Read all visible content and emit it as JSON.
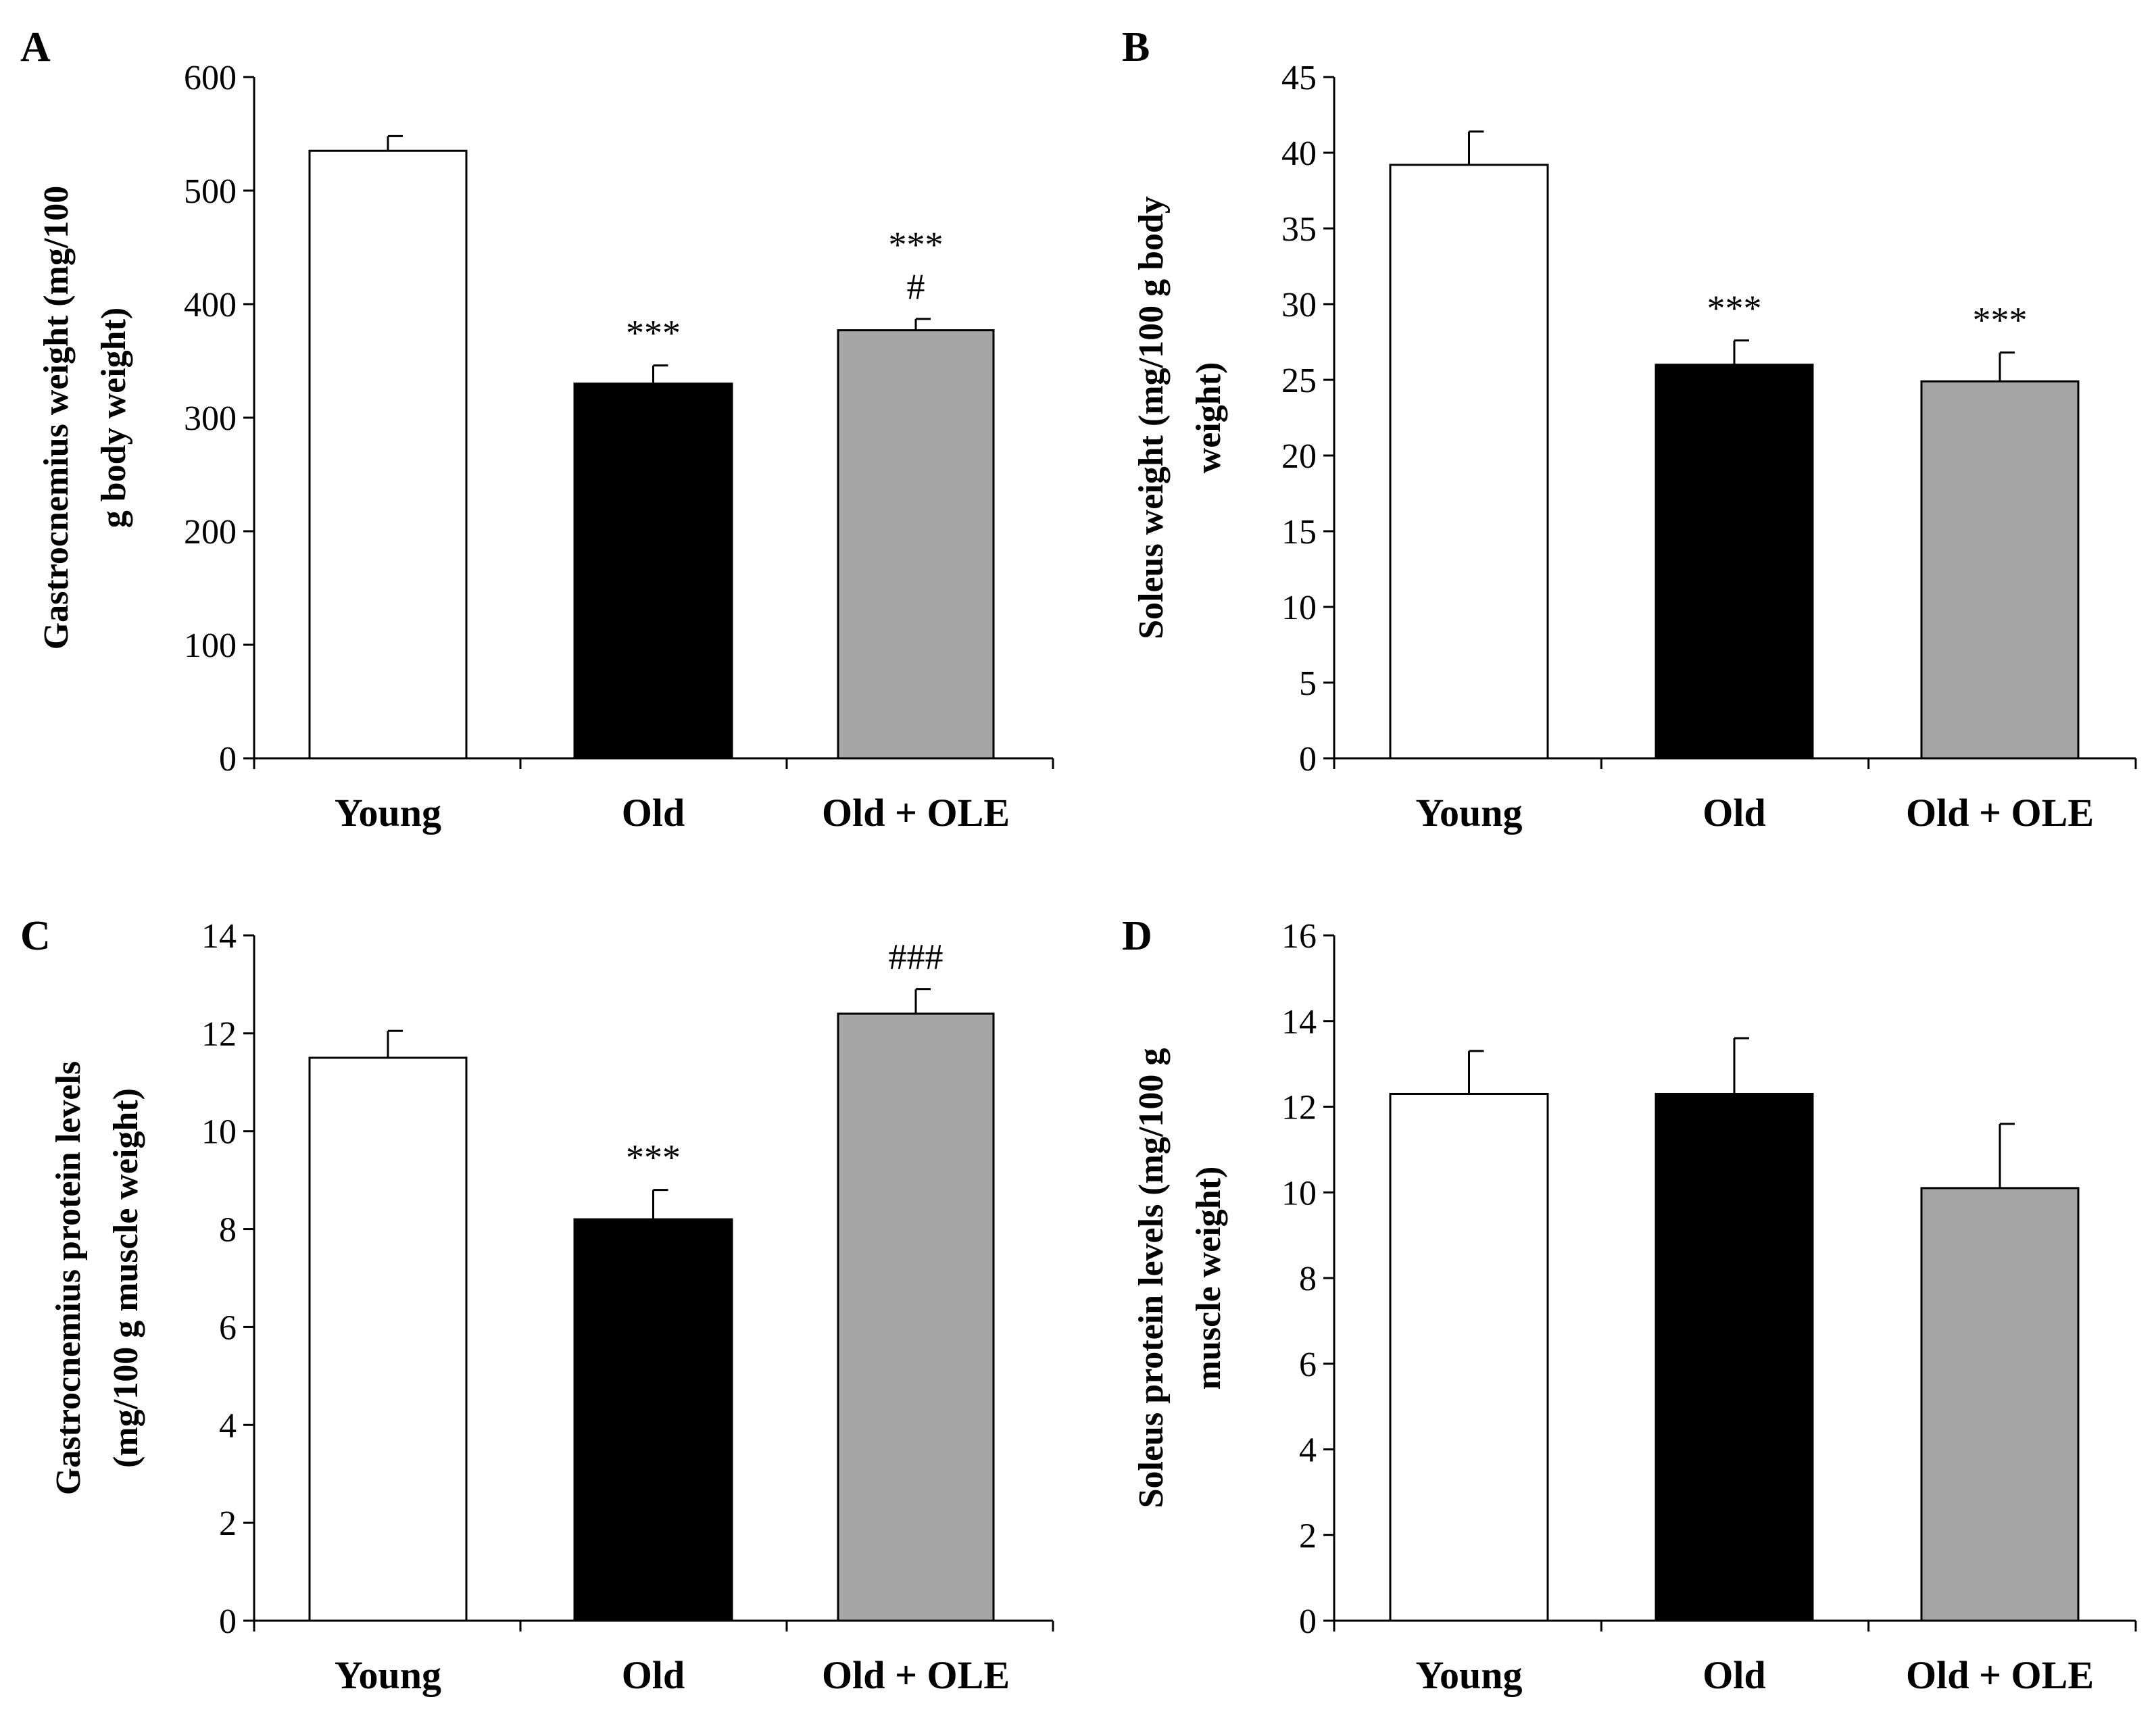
{
  "chart_data": [
    {
      "type": "bar",
      "panel": "A",
      "categories": [
        "Young",
        "Old",
        "Old + OLE"
      ],
      "values": [
        535,
        330,
        377
      ],
      "errors": [
        13,
        16,
        10
      ],
      "colors": [
        "#ffffff",
        "#000000",
        "#a6a6a6"
      ],
      "annotations": [
        [],
        [
          "***"
        ],
        [
          "***",
          "#"
        ]
      ],
      "ylabel_lines": [
        "Gastrocnemius weight (mg/100",
        "g body weight)"
      ],
      "ylim": [
        0,
        600
      ],
      "yticks": [
        0,
        100,
        200,
        300,
        400,
        500,
        600
      ]
    },
    {
      "type": "bar",
      "panel": "B",
      "categories": [
        "Young",
        "Old",
        "Old + OLE"
      ],
      "values": [
        39.2,
        26.0,
        24.9
      ],
      "errors": [
        2.2,
        1.6,
        1.9
      ],
      "colors": [
        "#ffffff",
        "#000000",
        "#a6a6a6"
      ],
      "annotations": [
        [],
        [
          "***"
        ],
        [
          "***"
        ]
      ],
      "ylabel_lines": [
        "Soleus weight (mg/100 g body",
        "weight)"
      ],
      "ylim": [
        0,
        45
      ],
      "yticks": [
        0,
        5,
        10,
        15,
        20,
        25,
        30,
        35,
        40,
        45
      ]
    },
    {
      "type": "bar",
      "panel": "C",
      "categories": [
        "Young",
        "Old",
        "Old + OLE"
      ],
      "values": [
        11.5,
        8.2,
        12.4
      ],
      "errors": [
        0.55,
        0.6,
        0.5
      ],
      "colors": [
        "#ffffff",
        "#000000",
        "#a6a6a6"
      ],
      "annotations": [
        [],
        [
          "***"
        ],
        [
          "###"
        ]
      ],
      "ylabel_lines": [
        "Gastrocnemius protein levels",
        "(mg/100 g muscle weight)"
      ],
      "ylim": [
        0,
        14
      ],
      "yticks": [
        0,
        2,
        4,
        6,
        8,
        10,
        12,
        14
      ]
    },
    {
      "type": "bar",
      "panel": "D",
      "categories": [
        "Young",
        "Old",
        "Old + OLE"
      ],
      "values": [
        12.3,
        12.3,
        10.1
      ],
      "errors": [
        1.0,
        1.3,
        1.5
      ],
      "colors": [
        "#ffffff",
        "#000000",
        "#a6a6a6"
      ],
      "annotations": [
        [],
        [],
        []
      ],
      "ylabel_lines": [
        "Soleus protein levels (mg/100 g",
        "muscle weight)"
      ],
      "ylim": [
        0,
        16
      ],
      "yticks": [
        0,
        2,
        4,
        6,
        8,
        10,
        12,
        14,
        16
      ]
    }
  ]
}
